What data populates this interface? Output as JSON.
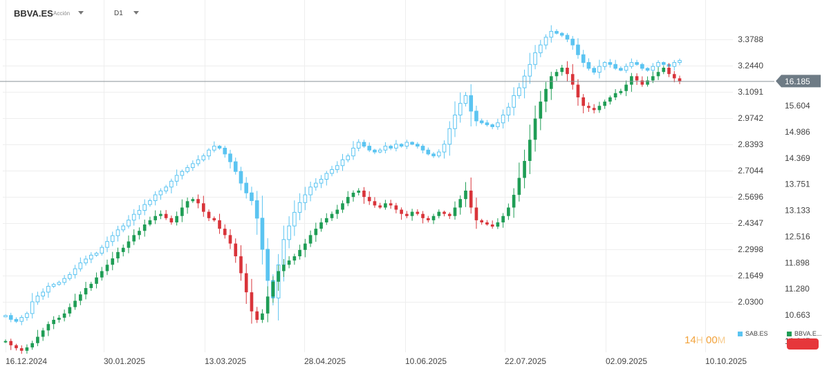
{
  "header": {
    "symbol": "BBVA.ES",
    "asset_type": "Acción",
    "timeframe": "D1"
  },
  "countdown": {
    "hours": "14",
    "hours_unit": "H",
    "minutes": "00",
    "minutes_unit": "M"
  },
  "price_tag": "16.185",
  "legend": [
    {
      "name": "SAB.ES",
      "color": "#5bc4f1"
    },
    {
      "name": "BBVA.E...",
      "color": "#1f9d55"
    }
  ],
  "colors": {
    "sab": "#5bc4f1",
    "bbva_up": "#1f9d55",
    "bbva_down": "#d9343a",
    "price_tag_bg": "#6e7b85",
    "alert": "#e6373b"
  },
  "chart_data": {
    "type": "candlestick",
    "x_ticks": [
      "16.12.2024",
      "30.01.2025",
      "13.03.2025",
      "28.04.2025",
      "10.06.2025",
      "22.07.2025",
      "02.09.2025",
      "10.10.2025"
    ],
    "y_left_ticks": [
      "3.3788",
      "3.2440",
      "3.1091",
      "2.9742",
      "2.8393",
      "2.7044",
      "2.5696",
      "2.4347",
      "2.2998",
      "2.1649",
      "2.0300"
    ],
    "y_right_ticks": [
      "15.604",
      "14.986",
      "14.369",
      "13.751",
      "13.133",
      "12.516",
      "11.898",
      "11.280",
      "10.663",
      "10.045"
    ],
    "left_range": [
      1.9383,
      3.4867
    ],
    "right_range": [
      9.625,
      16.635
    ],
    "current_price": 16.185,
    "grid": true,
    "legend_position": "bottom-right",
    "series": [
      {
        "name": "SAB.ES",
        "axis": "left",
        "close": [
          1.96,
          1.94,
          1.93,
          1.95,
          1.97,
          2.03,
          2.06,
          2.08,
          2.11,
          2.12,
          2.13,
          2.15,
          2.17,
          2.2,
          2.23,
          2.25,
          2.27,
          2.28,
          2.31,
          2.34,
          2.37,
          2.4,
          2.42,
          2.45,
          2.48,
          2.5,
          2.53,
          2.55,
          2.58,
          2.6,
          2.62,
          2.65,
          2.68,
          2.7,
          2.72,
          2.74,
          2.76,
          2.78,
          2.81,
          2.83,
          2.82,
          2.79,
          2.75,
          2.7,
          2.64,
          2.59,
          2.55,
          2.46,
          2.3,
          2.14,
          2.05,
          2.22,
          2.35,
          2.42,
          2.49,
          2.54,
          2.58,
          2.62,
          2.64,
          2.66,
          2.69,
          2.71,
          2.73,
          2.76,
          2.78,
          2.82,
          2.85,
          2.83,
          2.81,
          2.8,
          2.81,
          2.83,
          2.82,
          2.84,
          2.83,
          2.85,
          2.84,
          2.83,
          2.81,
          2.79,
          2.78,
          2.8,
          2.84,
          2.92,
          2.99,
          3.05,
          3.09,
          3.01,
          2.96,
          2.95,
          2.94,
          2.93,
          2.95,
          2.99,
          3.03,
          3.09,
          3.13,
          3.19,
          3.25,
          3.31,
          3.35,
          3.39,
          3.42,
          3.41,
          3.4,
          3.38,
          3.35,
          3.3,
          3.26,
          3.23,
          3.21,
          3.24,
          3.26,
          3.25,
          3.23,
          3.22,
          3.24,
          3.26,
          3.25,
          3.23,
          3.22,
          3.24,
          3.26,
          3.25,
          3.24,
          3.26,
          3.27
        ]
      },
      {
        "name": "BBVA.ES",
        "axis": "right",
        "close": [
          10.05,
          9.95,
          9.88,
          9.82,
          9.9,
          10.0,
          10.15,
          10.3,
          10.45,
          10.55,
          10.6,
          10.7,
          10.85,
          11.0,
          11.15,
          11.3,
          11.4,
          11.55,
          11.7,
          11.85,
          12.0,
          12.15,
          12.25,
          12.4,
          12.55,
          12.65,
          12.8,
          12.9,
          13.0,
          13.05,
          12.95,
          12.85,
          13.0,
          13.2,
          13.35,
          13.4,
          13.3,
          13.1,
          12.95,
          12.9,
          12.7,
          12.55,
          12.35,
          12.05,
          11.65,
          11.2,
          10.75,
          10.55,
          10.7,
          11.1,
          11.45,
          11.7,
          11.85,
          11.95,
          12.05,
          12.2,
          12.35,
          12.55,
          12.7,
          12.85,
          12.95,
          13.05,
          13.15,
          13.3,
          13.45,
          13.55,
          13.6,
          13.45,
          13.35,
          13.25,
          13.2,
          13.3,
          13.25,
          13.15,
          13.05,
          13.0,
          13.1,
          13.05,
          12.95,
          12.9,
          13.0,
          13.1,
          13.05,
          13.0,
          13.2,
          13.4,
          13.6,
          13.2,
          12.9,
          12.85,
          12.8,
          12.75,
          12.85,
          13.0,
          13.2,
          13.5,
          13.9,
          14.3,
          14.8,
          15.3,
          15.7,
          16.0,
          16.3,
          16.4,
          16.5,
          16.35,
          16.1,
          15.8,
          15.6,
          15.55,
          15.5,
          15.6,
          15.7,
          15.8,
          15.9,
          15.95,
          16.1,
          16.3,
          16.2,
          16.1,
          16.2,
          16.3,
          16.4,
          16.5,
          16.35,
          16.25,
          16.185
        ]
      }
    ]
  }
}
